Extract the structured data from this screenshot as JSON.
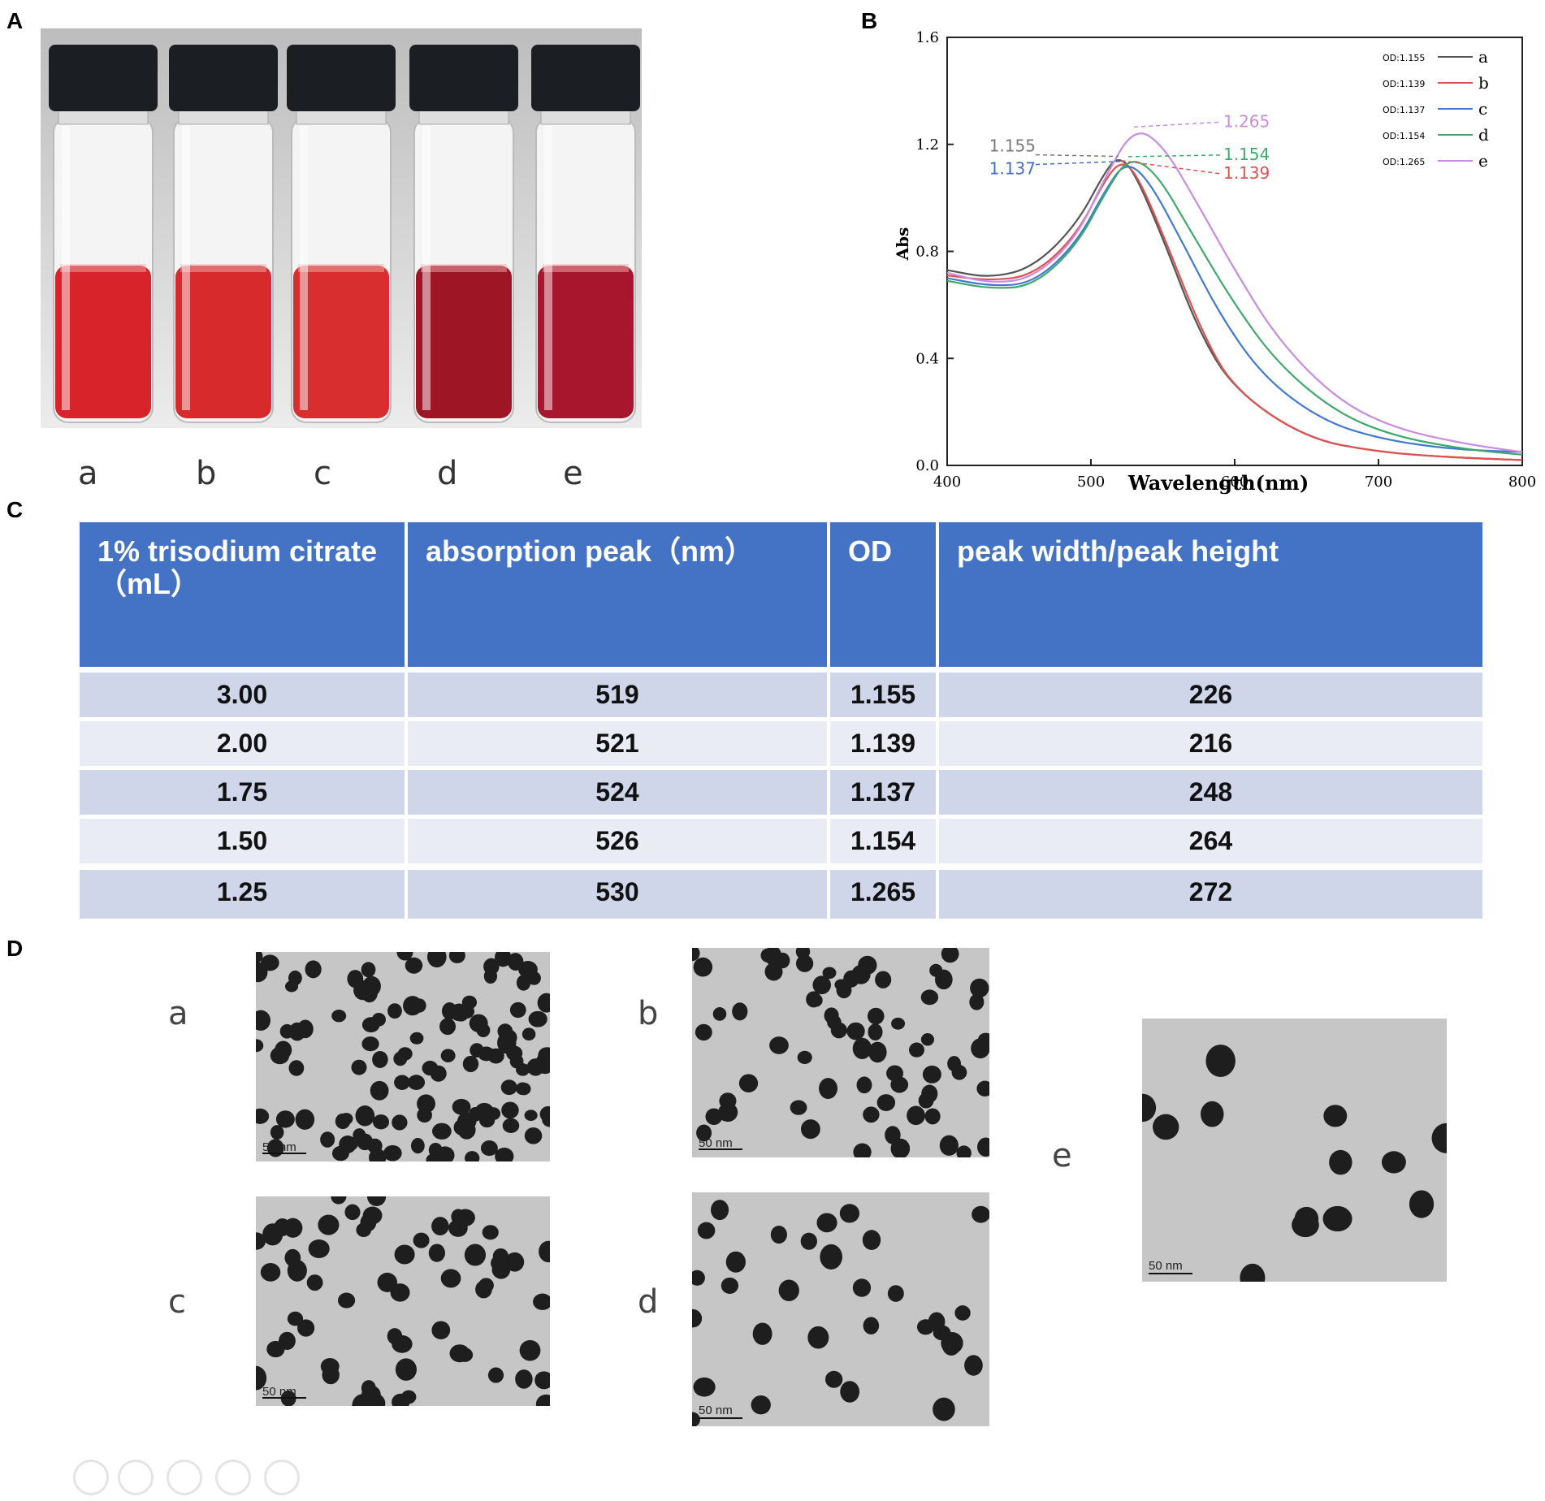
{
  "panels": {
    "A": "A",
    "B": "B",
    "C": "C",
    "D": "D"
  },
  "vials": {
    "labels": [
      "a",
      "b",
      "c",
      "d",
      "e"
    ],
    "liquid_colors": [
      "#d8232b",
      "#d62a2d",
      "#d92e2f",
      "#9e1526",
      "#a8162e"
    ]
  },
  "chart_data": {
    "type": "line",
    "xlabel": "Wavelength(nm)",
    "ylabel": "Abs",
    "xlim": [
      400,
      800
    ],
    "ylim": [
      0.0,
      1.6
    ],
    "x_ticks": [
      "400",
      "500",
      "600",
      "700",
      "800"
    ],
    "y_ticks": [
      "0.0",
      "0.4",
      "0.8",
      "1.2",
      "1.6"
    ],
    "legend_position": "top-right",
    "series": [
      {
        "name": "OD:1.155",
        "letter": "a",
        "color": "#555555",
        "points": [
          [
            400,
            0.73
          ],
          [
            430,
            0.7
          ],
          [
            460,
            0.74
          ],
          [
            490,
            0.9
          ],
          [
            510,
            1.1
          ],
          [
            519,
            1.155
          ],
          [
            530,
            1.1
          ],
          [
            550,
            0.85
          ],
          [
            575,
            0.5
          ],
          [
            600,
            0.28
          ],
          [
            650,
            0.1
          ],
          [
            700,
            0.05
          ],
          [
            750,
            0.03
          ],
          [
            800,
            0.02
          ]
        ]
      },
      {
        "name": "OD:1.139",
        "letter": "b",
        "color": "#e05050",
        "points": [
          [
            400,
            0.71
          ],
          [
            430,
            0.69
          ],
          [
            460,
            0.71
          ],
          [
            490,
            0.86
          ],
          [
            510,
            1.07
          ],
          [
            521,
            1.139
          ],
          [
            532,
            1.09
          ],
          [
            552,
            0.84
          ],
          [
            577,
            0.5
          ],
          [
            600,
            0.28
          ],
          [
            650,
            0.1
          ],
          [
            700,
            0.05
          ],
          [
            750,
            0.03
          ],
          [
            800,
            0.02
          ]
        ]
      },
      {
        "name": "OD:1.137",
        "letter": "c",
        "color": "#3f7ad0",
        "points": [
          [
            400,
            0.7
          ],
          [
            430,
            0.67
          ],
          [
            460,
            0.68
          ],
          [
            490,
            0.83
          ],
          [
            510,
            1.03
          ],
          [
            524,
            1.137
          ],
          [
            540,
            1.07
          ],
          [
            565,
            0.82
          ],
          [
            590,
            0.56
          ],
          [
            620,
            0.33
          ],
          [
            660,
            0.17
          ],
          [
            700,
            0.1
          ],
          [
            750,
            0.06
          ],
          [
            800,
            0.05
          ]
        ]
      },
      {
        "name": "OD:1.154",
        "letter": "d",
        "color": "#3ea96b",
        "points": [
          [
            400,
            0.69
          ],
          [
            430,
            0.66
          ],
          [
            460,
            0.67
          ],
          [
            490,
            0.82
          ],
          [
            510,
            1.02
          ],
          [
            526,
            1.154
          ],
          [
            545,
            1.1
          ],
          [
            570,
            0.87
          ],
          [
            600,
            0.6
          ],
          [
            630,
            0.38
          ],
          [
            670,
            0.2
          ],
          [
            710,
            0.11
          ],
          [
            760,
            0.06
          ],
          [
            800,
            0.04
          ]
        ]
      },
      {
        "name": "OD:1.265",
        "letter": "e",
        "color": "#c98be0",
        "points": [
          [
            400,
            0.72
          ],
          [
            430,
            0.68
          ],
          [
            460,
            0.7
          ],
          [
            490,
            0.85
          ],
          [
            510,
            1.08
          ],
          [
            530,
            1.265
          ],
          [
            550,
            1.2
          ],
          [
            575,
            0.97
          ],
          [
            600,
            0.73
          ],
          [
            630,
            0.47
          ],
          [
            670,
            0.25
          ],
          [
            710,
            0.14
          ],
          [
            760,
            0.08
          ],
          [
            800,
            0.05
          ]
        ]
      }
    ],
    "annotations": [
      {
        "text": "1.155",
        "color": "#7a7a7a"
      },
      {
        "text": "1.137",
        "color": "#3f6fc9"
      },
      {
        "text": "1.265",
        "color": "#c98be0"
      },
      {
        "text": "1.154",
        "color": "#3ea96b"
      },
      {
        "text": "1.139",
        "color": "#e05050"
      }
    ]
  },
  "table": {
    "headers": [
      "1% trisodium citrate （mL）",
      "absorption peak（nm）",
      "OD",
      "peak width/peak height"
    ],
    "rows": [
      [
        "3.00",
        "519",
        "1.155",
        "226"
      ],
      [
        "2.00",
        "521",
        "1.139",
        "216"
      ],
      [
        "1.75",
        "524",
        "1.137",
        "248"
      ],
      [
        "1.50",
        "526",
        "1.154",
        "264"
      ],
      [
        "1.25",
        "530",
        "1.265",
        "272"
      ]
    ]
  },
  "tem": {
    "labels": [
      "a",
      "b",
      "c",
      "d",
      "e"
    ],
    "scale_labels": [
      "50 nm",
      "50 nm",
      "50 nm",
      "50 nm",
      "50 nm"
    ]
  },
  "toolbar": {
    "icons": [
      "share-icon",
      "gallery-icon",
      "zoom-icon",
      "caption-icon",
      "more-icon"
    ]
  }
}
